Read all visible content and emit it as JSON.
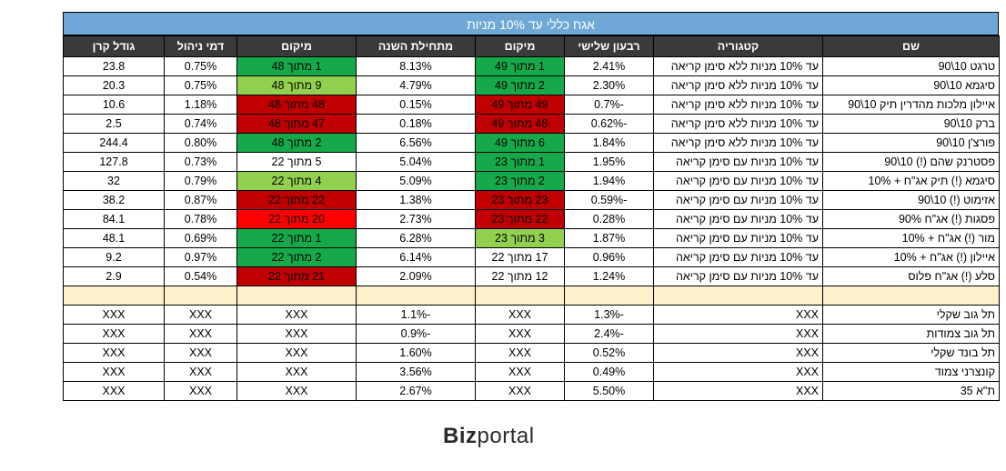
{
  "title": "אגח כללי עד 10% מניות",
  "headers": [
    "שם",
    "קטגוריה",
    "רבעון שלישי",
    "מיקום",
    "מתחילת השנה",
    "מיקום",
    "דמי ניהול",
    "גודל קרן"
  ],
  "rows": [
    {
      "name": "טרגט 10\\90",
      "cat": "עד 10% מניות ללא סימן קריאה",
      "q3": "2.41%",
      "rank1": "1 מתוך 49",
      "rank1_color": "green",
      "ytd": "8.13%",
      "rank2": "1 מתוך 48",
      "rank2_color": "green",
      "fee": "0.75%",
      "size": "23.8"
    },
    {
      "name": "סיגמא 10\\90",
      "cat": "עד 10% מניות ללא סימן קריאה",
      "q3": "2.30%",
      "rank1": "2 מתוך 49",
      "rank1_color": "green",
      "ytd": "4.79%",
      "rank2": "9 מתוך 48",
      "rank2_color": "lightgreen",
      "fee": "0.75%",
      "size": "20.3"
    },
    {
      "name": "איילון מלכות מהדרין תיק 10\\90",
      "cat": "עד 10% מניות ללא סימן קריאה",
      "q3": "-0.7%",
      "rank1": "49 מתוך 49",
      "rank1_color": "red",
      "ytd": "0.15%",
      "rank2": "48 מתוך 48",
      "rank2_color": "red",
      "fee": "1.18%",
      "size": "10.6"
    },
    {
      "name": "ברק 10\\90",
      "cat": "עד 10% מניות ללא סימן קריאה",
      "q3": "-0.62%",
      "rank1": "48 מתוך 49",
      "rank1_color": "red",
      "ytd": "0.18%",
      "rank2": "47 מתוך 48",
      "rank2_color": "red",
      "fee": "0.74%",
      "size": "2.5"
    },
    {
      "name": "פורצ'ן 10\\90",
      "cat": "עד 10% מניות ללא סימן קריאה",
      "q3": "1.84%",
      "rank1": "6 מתוך 49",
      "rank1_color": "green",
      "ytd": "6.56%",
      "rank2": "2 מתוך 48",
      "rank2_color": "green",
      "fee": "0.80%",
      "size": "244.4"
    },
    {
      "name": "פסטרנק שהם (!) 10\\90",
      "cat": "עד 10% מניות עם סימן קריאה",
      "q3": "1.95%",
      "rank1": "1 מתוך 23",
      "rank1_color": "green",
      "ytd": "5.04%",
      "rank2": "5 מתוך 22",
      "rank2_color": "",
      "fee": "0.73%",
      "size": "127.8"
    },
    {
      "name": "סיגמא (!) תיק אג\"ח + 10%",
      "cat": "עד 10% מניות עם סימן קריאה",
      "q3": "1.94%",
      "rank1": "2 מתוך 23",
      "rank1_color": "green",
      "ytd": "5.09%",
      "rank2": "4 מתוך 22",
      "rank2_color": "lightgreen",
      "fee": "0.79%",
      "size": "32"
    },
    {
      "name": "אזימוט (!) 10\\90",
      "cat": "עד 10% מניות עם סימן קריאה",
      "q3": "-0.59%",
      "rank1": "23 מתוך 23",
      "rank1_color": "red",
      "ytd": "1.38%",
      "rank2": "22 מתוך 22",
      "rank2_color": "red",
      "fee": "0.87%",
      "size": "38.2"
    },
    {
      "name": "פסגות (!) אג\"ח 90%",
      "cat": "עד 10% מניות עם סימן קריאה",
      "q3": "0.28%",
      "rank1": "22 מתוך 23",
      "rank1_color": "red",
      "ytd": "2.73%",
      "rank2": "20 מתוך 22",
      "rank2_color": "brightred",
      "fee": "0.78%",
      "size": "84.1"
    },
    {
      "name": "מור (!) אג\"ח + 10%",
      "cat": "עד 10% מניות עם סימן קריאה",
      "q3": "1.87%",
      "rank1": "3 מתוך 23",
      "rank1_color": "lightgreen",
      "ytd": "6.28%",
      "rank2": "1 מתוך 22",
      "rank2_color": "green",
      "fee": "0.69%",
      "size": "48.1"
    },
    {
      "name": "איילון (!) אג\"ח + 10%",
      "cat": "עד 10% מניות עם סימן קריאה",
      "q3": "0.96%",
      "rank1": "17 מתוך 22",
      "rank1_color": "",
      "ytd": "6.14%",
      "rank2": "2 מתוך 22",
      "rank2_color": "green",
      "fee": "0.97%",
      "size": "9.2"
    },
    {
      "name": "סלע (!) אג\"ח פלוס",
      "cat": "עד 10% מניות עם סימן קריאה",
      "q3": "1.24%",
      "rank1": "12 מתוך 22",
      "rank1_color": "",
      "ytd": "2.09%",
      "rank2": "21 מתוך 22",
      "rank2_color": "red",
      "fee": "0.54%",
      "size": "2.9"
    }
  ],
  "indices": [
    {
      "name": "תל גוב שקלי",
      "cat": "XXX",
      "q3": "-1.3%",
      "rank1": "XXX",
      "ytd": "-1.1%",
      "rank2": "XXX",
      "fee": "XXX",
      "size": "XXX"
    },
    {
      "name": "תל גוב צמודות",
      "cat": "XXX",
      "q3": "-2.4%",
      "rank1": "XXX",
      "ytd": "-0.9%",
      "rank2": "XXX",
      "fee": "XXX",
      "size": "XXX"
    },
    {
      "name": "תל בונד שקלי",
      "cat": "XXX",
      "q3": "0.52%",
      "rank1": "XXX",
      "ytd": "1.60%",
      "rank2": "XXX",
      "fee": "XXX",
      "size": "XXX"
    },
    {
      "name": "קונצרני צמוד",
      "cat": "XXX",
      "q3": "0.49%",
      "rank1": "XXX",
      "ytd": "3.56%",
      "rank2": "XXX",
      "fee": "XXX",
      "size": "XXX"
    },
    {
      "name": "ת\"א 35",
      "cat": "XXX",
      "q3": "5.50%",
      "rank1": "XXX",
      "ytd": "2.67%",
      "rank2": "XXX",
      "fee": "XXX",
      "size": "XXX"
    }
  ],
  "logo": {
    "bold": "Biz",
    "light": "portal"
  },
  "colors": {
    "green": "#16a94a",
    "lightgreen": "#92d050",
    "red": "#c00000",
    "brightred": "#ff0000",
    "header": "#3a3a3a",
    "title": "#6fa8d6",
    "separator": "#fdf1cc"
  }
}
